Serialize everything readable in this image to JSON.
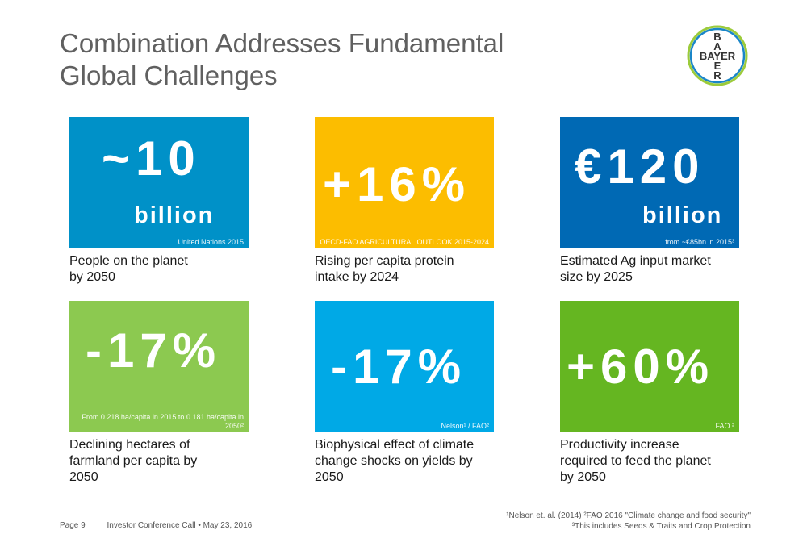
{
  "title_line1": "Combination Addresses Fundamental",
  "title_line2": "Global Challenges",
  "logo": {
    "top": "B",
    "left": "A",
    "right": "E",
    "bottom": "R",
    "word": "BAYER",
    "icon": "bayer-cross-logo"
  },
  "tiles": [
    {
      "value": "~10",
      "unit": "billion",
      "source": "United Nations 2015",
      "caption_1": "People on the planet",
      "caption_2": "by 2050",
      "caption_3": "",
      "color": "#0091c8"
    },
    {
      "value": "+16%",
      "unit": "",
      "source": "OECD-FAO AGRICULTURAL OUTLOOK 2015-2024",
      "caption_1": "Rising per capita protein",
      "caption_2": "intake by 2024",
      "caption_3": "",
      "color": "#fcbd00"
    },
    {
      "value": "€120",
      "unit": "billion",
      "source": "from ~€85bn in 2015³",
      "caption_1": "Estimated Ag input market",
      "caption_2": "size by 2025",
      "caption_3": "",
      "color": "#0069b4"
    },
    {
      "value": "-17%",
      "unit": "",
      "source": "From 0.218 ha/capita in 2015 to 0.181 ha/capita in 2050²",
      "caption_1": "Declining hectares of",
      "caption_2": "farmland per capita by",
      "caption_3": "2050",
      "color": "#8cc950"
    },
    {
      "value": "-17%",
      "unit": "",
      "source": "Nelson¹ / FAO²",
      "caption_1": "Biophysical effect of climate",
      "caption_2": "change shocks on yields by",
      "caption_3": "2050",
      "color": "#00a9e6"
    },
    {
      "value": "+60%",
      "unit": "",
      "source": "FAO ²",
      "caption_1": "Productivity increase",
      "caption_2": "required to feed the planet",
      "caption_3": "by 2050",
      "color": "#65b621"
    }
  ],
  "footer": {
    "page": "Page 9",
    "event": "Investor Conference Call • May 23, 2016",
    "footnote_1": "¹Nelson et. al. (2014) ²FAO 2016 \"Climate change and food security\"",
    "footnote_2": "³This includes Seeds & Traits and Crop Protection"
  }
}
